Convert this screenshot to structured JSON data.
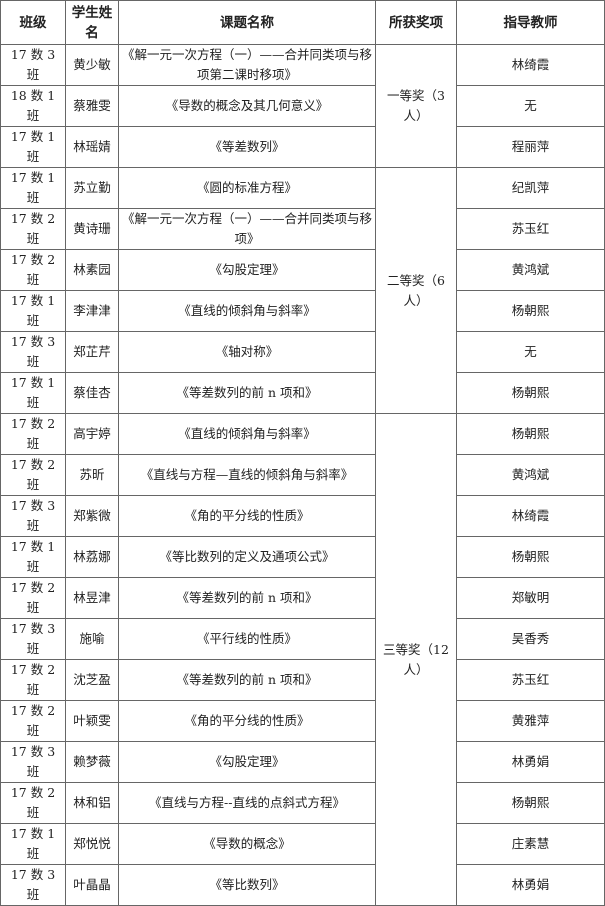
{
  "headers": [
    "班级",
    "学生姓名",
    "课题名称",
    "所获奖项",
    "指导教师"
  ],
  "awards": [
    "一等奖（3 人）",
    "二等奖（6 人）",
    "三等奖（12 人）"
  ],
  "rows": [
    {
      "class": "17 数 3 班",
      "student": "黄少敏",
      "topic": "《解一元一次方程（一）——合并同类项与移项第二课时移项》",
      "teacher": "林绮霞"
    },
    {
      "class": "18 数 1 班",
      "student": "蔡雅雯",
      "topic": "《导数的概念及其几何意义》",
      "teacher": "无"
    },
    {
      "class": "17 数 1 班",
      "student": "林瑶婧",
      "topic": "《等差数列》",
      "teacher": "程丽萍"
    },
    {
      "class": "17 数 1 班",
      "student": "苏立勤",
      "topic": "《圆的标准方程》",
      "teacher": "纪凯萍"
    },
    {
      "class": "17 数 2 班",
      "student": "黄诗珊",
      "topic": "《解一元一次方程（一）——合并同类项与移项》",
      "teacher": "苏玉红"
    },
    {
      "class": "17 数 2 班",
      "student": "林素园",
      "topic": "《勾股定理》",
      "teacher": "黄鸿斌"
    },
    {
      "class": "17 数 1 班",
      "student": "李津津",
      "topic": "《直线的倾斜角与斜率》",
      "teacher": "杨朝熙"
    },
    {
      "class": "17 数 3 班",
      "student": "郑芷芹",
      "topic": "《轴对称》",
      "teacher": "无"
    },
    {
      "class": "17 数 1 班",
      "student": "蔡佳杏",
      "topic": "《等差数列的前 n 项和》",
      "teacher": "杨朝熙"
    },
    {
      "class": "17 数 2 班",
      "student": "高宇婷",
      "topic": "《直线的倾斜角与斜率》",
      "teacher": "杨朝熙"
    },
    {
      "class": "17 数 2 班",
      "student": "苏昕",
      "topic": "《直线与方程—直线的倾斜角与斜率》",
      "teacher": "黄鸿斌"
    },
    {
      "class": "17 数 3 班",
      "student": "郑紫微",
      "topic": "《角的平分线的性质》",
      "teacher": "林绮霞"
    },
    {
      "class": "17 数 1 班",
      "student": "林荔娜",
      "topic": "《等比数列的定义及通项公式》",
      "teacher": "杨朝熙"
    },
    {
      "class": "17 数 2 班",
      "student": "林昱津",
      "topic": "《等差数列的前 n 项和》",
      "teacher": "郑敏明"
    },
    {
      "class": "17 数 3 班",
      "student": "施喻",
      "topic": "《平行线的性质》",
      "teacher": "吴香秀"
    },
    {
      "class": "17 数 2 班",
      "student": "沈芝盈",
      "topic": "《等差数列的前 n 项和》",
      "teacher": "苏玉红"
    },
    {
      "class": "17 数 2 班",
      "student": "叶颖雯",
      "topic": "《角的平分线的性质》",
      "teacher": "黄雅萍"
    },
    {
      "class": "17 数 3 班",
      "student": "赖梦薇",
      "topic": "《勾股定理》",
      "teacher": "林勇娟"
    },
    {
      "class": "17 数 2 班",
      "student": "林和铝",
      "topic": "《直线与方程--直线的点斜式方程》",
      "teacher": "杨朝熙"
    },
    {
      "class": "17 数 1 班",
      "student": "郑悦悦",
      "topic": "《导数的概念》",
      "teacher": "庄素慧"
    },
    {
      "class": "17 数 3 班",
      "student": "叶晶晶",
      "topic": "《等比数列》",
      "teacher": "林勇娟"
    }
  ]
}
